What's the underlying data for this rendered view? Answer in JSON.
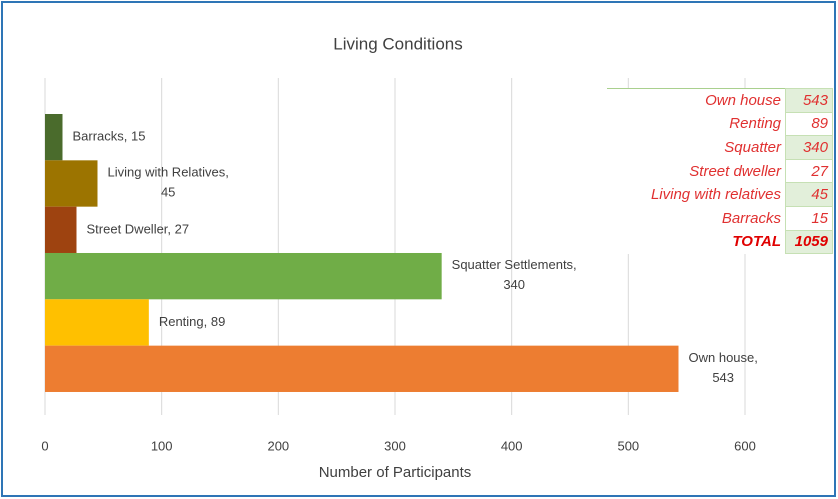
{
  "chart_data": {
    "type": "hbar",
    "title": "Living Conditions",
    "x_label": "Number of Participants",
    "categories": [
      "Barracks",
      "Living with Relatives",
      "Street Dweller",
      "Squatter Settlements",
      "Renting",
      "Own house"
    ],
    "values": [
      15,
      45,
      27,
      340,
      89,
      543
    ],
    "value_labels": [
      "Barracks, 15",
      "Living with Relatives, 45",
      "Street Dweller, 27",
      "Squatter Settlements, 340",
      "Renting, 89",
      "Own house, 543"
    ],
    "colors": [
      "#4a6b2c",
      "#9c7400",
      "#9e4310",
      "#70ad47",
      "#ffc000",
      "#ed7d31"
    ],
    "xlim": [
      0,
      600
    ],
    "xticks": [
      0,
      100,
      200,
      300,
      400,
      500,
      600
    ],
    "grid": true
  },
  "table": {
    "rows": [
      [
        "Own house",
        "543"
      ],
      [
        "Renting",
        "89"
      ],
      [
        "Squatter",
        "340"
      ],
      [
        "Street dweller",
        "27"
      ],
      [
        "Living with relatives",
        "45"
      ],
      [
        "Barracks",
        "15"
      ],
      [
        "TOTAL",
        "1059"
      ]
    ]
  }
}
